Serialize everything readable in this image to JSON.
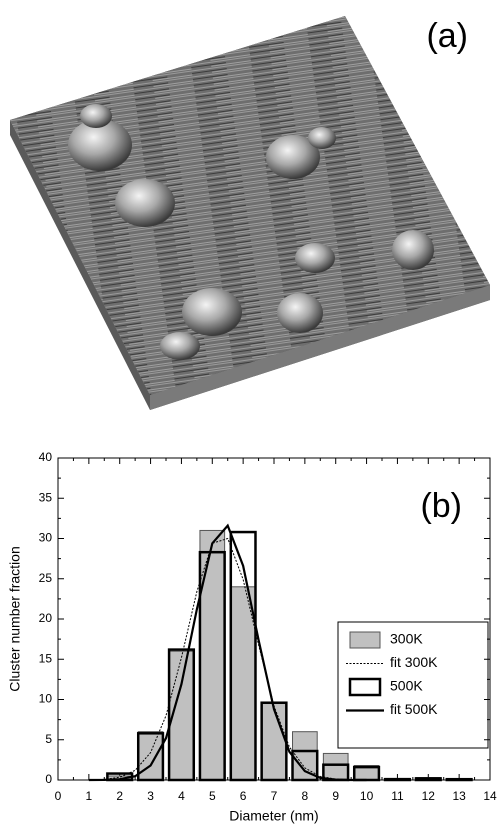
{
  "image": {
    "label": "(a)"
  },
  "chart_data": {
    "type": "bar",
    "panel_label": "(b)",
    "x_label": "Diameter (nm)",
    "y_label": "Cluster number fraction",
    "xlim": [
      0,
      14
    ],
    "xticks": [
      0,
      1,
      2,
      3,
      4,
      5,
      6,
      7,
      8,
      9,
      10,
      11,
      12,
      13,
      14
    ],
    "ylim": [
      0,
      40
    ],
    "yticks": [
      0,
      5,
      10,
      15,
      20,
      25,
      30,
      35,
      40
    ],
    "legend": "right",
    "series": [
      {
        "name": "300K",
        "type": "bar",
        "color": "#c0c0c0",
        "x": [
          2,
          3,
          4,
          5,
          6,
          7,
          8,
          9,
          10,
          11,
          12,
          13
        ],
        "values": [
          0.5,
          6,
          16,
          31,
          24,
          9.5,
          6,
          3.3,
          1.8,
          0.2,
          0.3,
          0.1
        ]
      },
      {
        "name": "fit 300K",
        "type": "line",
        "color": "#000000",
        "dash": "dotted",
        "x": [
          1,
          1.5,
          2,
          2.5,
          3,
          3.5,
          4,
          4.5,
          5,
          5.5,
          6,
          6.5,
          7,
          7.5,
          8,
          8.5,
          9,
          9.5,
          10
        ],
        "values": [
          0,
          0.08,
          0.34,
          1.2,
          3.4,
          8,
          15.2,
          23.4,
          29.4,
          30,
          24.9,
          16.8,
          9.2,
          4.1,
          1.5,
          0.44,
          0.11,
          0.02,
          0
        ]
      },
      {
        "name": "500K",
        "type": "bar",
        "color": "#000000",
        "x": [
          2,
          3,
          4,
          5,
          6,
          7,
          8,
          9,
          10,
          11,
          12,
          13
        ],
        "values": [
          0.8,
          5.8,
          16.2,
          28.3,
          30.8,
          9.6,
          3.6,
          1.9,
          1.6,
          0.1,
          0.2,
          0.1
        ]
      },
      {
        "name": "fit 500K",
        "type": "line",
        "color": "#000000",
        "dash": "solid",
        "x": [
          1,
          1.5,
          2,
          2.5,
          3,
          3.5,
          4,
          4.5,
          5,
          5.5,
          6,
          6.5,
          7,
          7.5,
          8,
          8.5,
          9,
          9.5,
          10
        ],
        "values": [
          0,
          0.02,
          0.1,
          0.47,
          1.8,
          5.2,
          11.9,
          21.2,
          29.4,
          31.6,
          26.6,
          17.4,
          8.8,
          3.5,
          1.1,
          0.26,
          0.05,
          0,
          0
        ]
      }
    ]
  }
}
